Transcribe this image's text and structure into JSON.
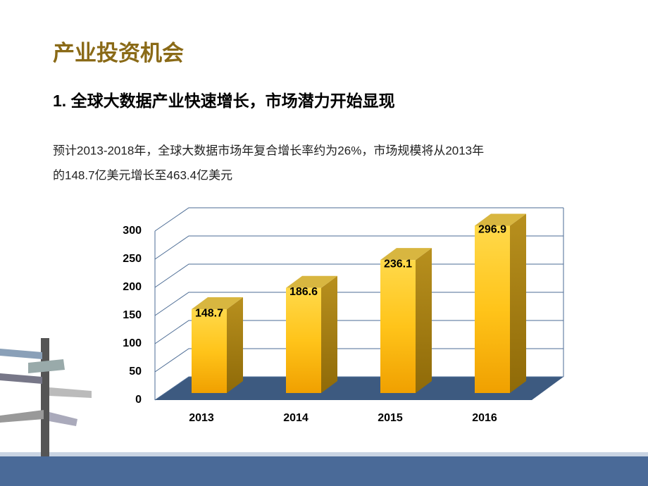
{
  "slide": {
    "title": "产业投资机会",
    "subtitle": "1. 全球大数据产业快速增长，市场潜力开始显现",
    "paragraph": [
      "预计2013-2018年，全球大数据市场年复合增长率约为26%，市场规模将从2013年",
      "的148.7亿美元增长至463.4亿美元"
    ]
  },
  "chart_data": {
    "type": "bar3d",
    "categories": [
      "2013",
      "2014",
      "2015",
      "2016"
    ],
    "values": [
      148.7,
      186.6,
      236.1,
      296.9
    ],
    "color": "#f5b400",
    "ylim": [
      0,
      300
    ],
    "yticks": [
      0,
      50,
      100,
      150,
      200,
      250,
      300
    ],
    "grid": true
  }
}
